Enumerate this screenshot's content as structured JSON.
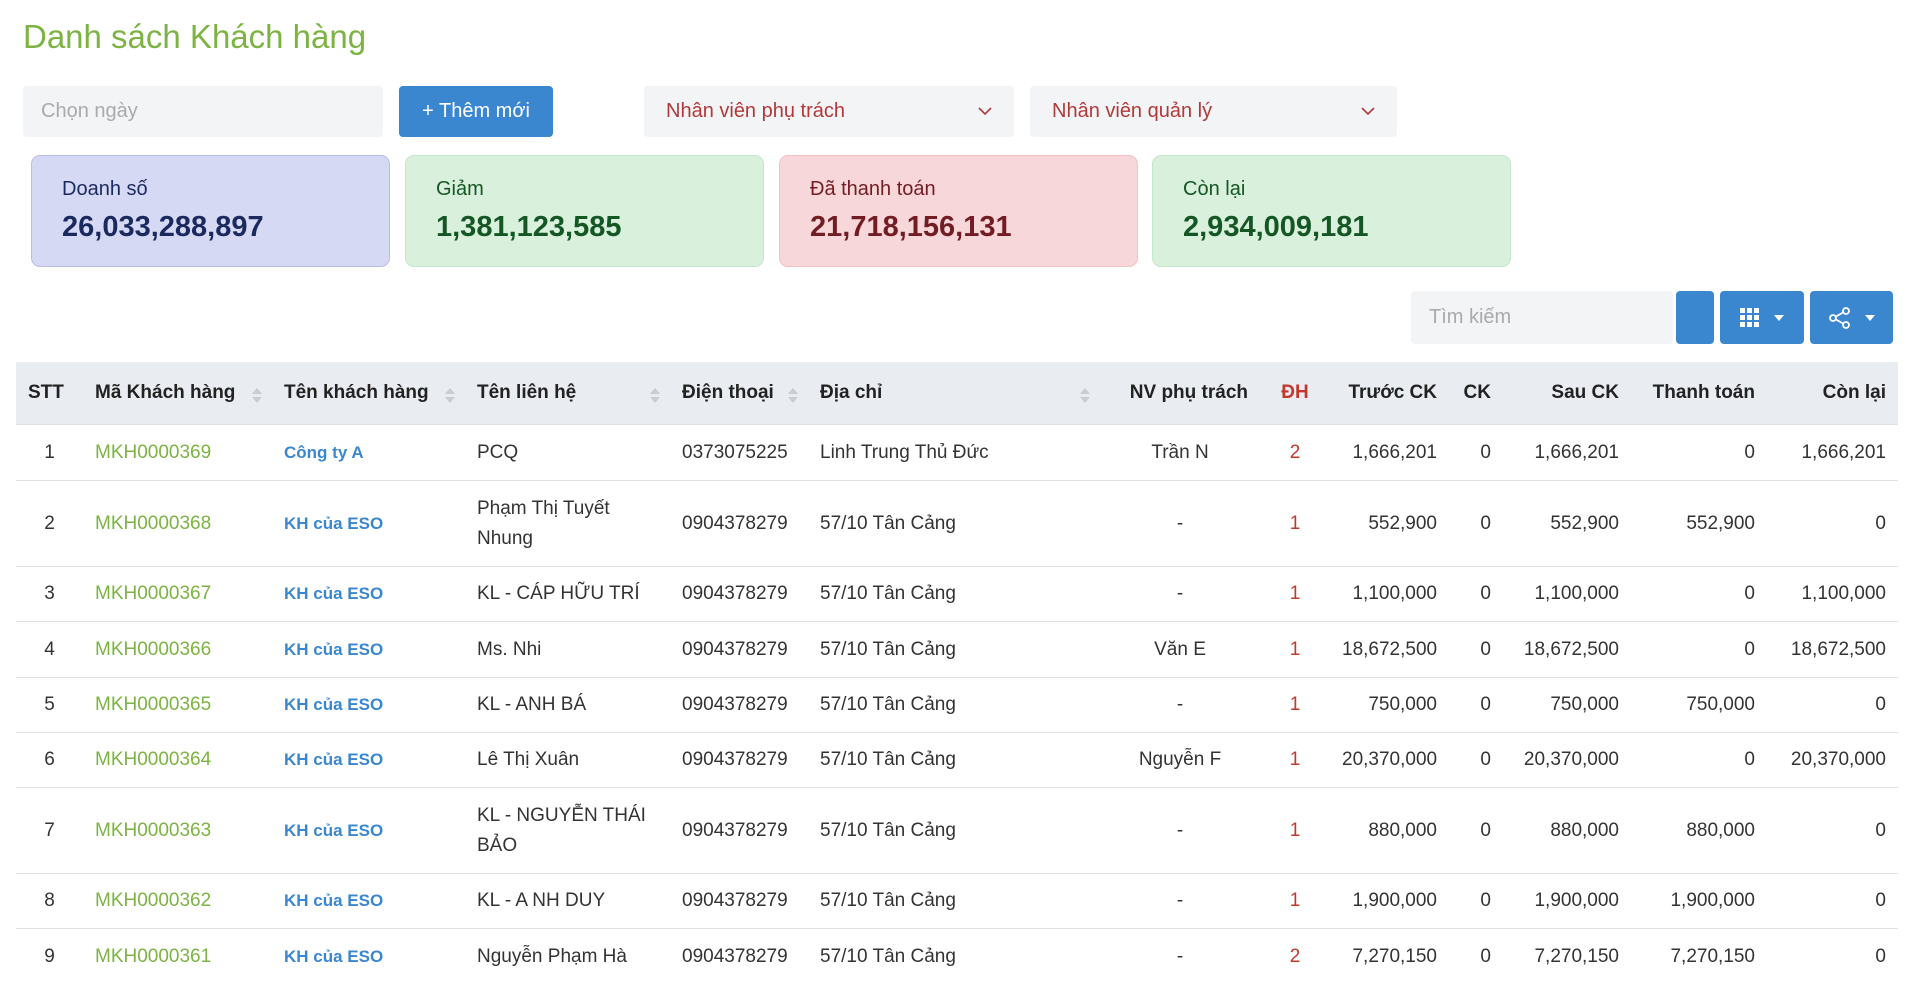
{
  "header": {
    "title": "Danh sách Khách hàng"
  },
  "filters": {
    "date_placeholder": "Chọn ngày",
    "add_button": "+ Thêm mới",
    "staff_in_charge": "Nhân viên phụ trách",
    "staff_manager": "Nhân viên quản lý"
  },
  "stats": [
    {
      "label": "Doanh số",
      "value": "26,033,288,897"
    },
    {
      "label": "Giảm",
      "value": "1,381,123,585"
    },
    {
      "label": "Đã thanh toán",
      "value": "21,718,156,131"
    },
    {
      "label": "Còn lại",
      "value": "2,934,009,181"
    }
  ],
  "toolbar": {
    "search_placeholder": "Tìm kiếm"
  },
  "table": {
    "columns": [
      "STT",
      "Mã Khách hàng",
      "Tên khách hàng",
      "Tên liên hệ",
      "Điện thoại",
      "Địa chỉ",
      "NV phụ trách",
      "ĐH",
      "Trước CK",
      "CK",
      "Sau CK",
      "Thanh toán",
      "Còn lại"
    ],
    "rows": [
      [
        "1",
        "MKH0000369",
        "Công ty A",
        "PCQ",
        "0373075225",
        "Linh Trung Thủ Đức",
        "Trần N",
        "2",
        "1,666,201",
        "0",
        "1,666,201",
        "0",
        "1,666,201"
      ],
      [
        "2",
        "MKH0000368",
        "KH của ESO",
        "Phạm Thị Tuyết Nhung",
        "0904378279",
        "57/10 Tân Cảng",
        "-",
        "1",
        "552,900",
        "0",
        "552,900",
        "552,900",
        "0"
      ],
      [
        "3",
        "MKH0000367",
        "KH của ESO",
        "KL - CÁP HỮU TRÍ",
        "0904378279",
        "57/10 Tân Cảng",
        "-",
        "1",
        "1,100,000",
        "0",
        "1,100,000",
        "0",
        "1,100,000"
      ],
      [
        "4",
        "MKH0000366",
        "KH của ESO",
        "Ms. Nhi",
        "0904378279",
        "57/10 Tân Cảng",
        "Văn E",
        "1",
        "18,672,500",
        "0",
        "18,672,500",
        "0",
        "18,672,500"
      ],
      [
        "5",
        "MKH0000365",
        "KH của ESO",
        "KL - ANH BÁ",
        "0904378279",
        "57/10 Tân Cảng",
        "-",
        "1",
        "750,000",
        "0",
        "750,000",
        "750,000",
        "0"
      ],
      [
        "6",
        "MKH0000364",
        "KH của ESO",
        "Lê Thị Xuân",
        "0904378279",
        "57/10 Tân Cảng",
        "Nguyễn F",
        "1",
        "20,370,000",
        "0",
        "20,370,000",
        "0",
        "20,370,000"
      ],
      [
        "7",
        "MKH0000363",
        "KH của ESO",
        "KL - NGUYỄN THÁI BẢO",
        "0904378279",
        "57/10 Tân Cảng",
        "-",
        "1",
        "880,000",
        "0",
        "880,000",
        "880,000",
        "0"
      ],
      [
        "8",
        "MKH0000362",
        "KH của ESO",
        "KL - A NH DUY",
        "0904378279",
        "57/10 Tân Cảng",
        "-",
        "1",
        "1,900,000",
        "0",
        "1,900,000",
        "1,900,000",
        "0"
      ],
      [
        "9",
        "MKH0000361",
        "KH của ESO",
        "Nguyễn Phạm Hà",
        "0904378279",
        "57/10 Tân Cảng",
        "-",
        "2",
        "7,270,150",
        "0",
        "7,270,150",
        "7,270,150",
        "0"
      ]
    ]
  }
}
